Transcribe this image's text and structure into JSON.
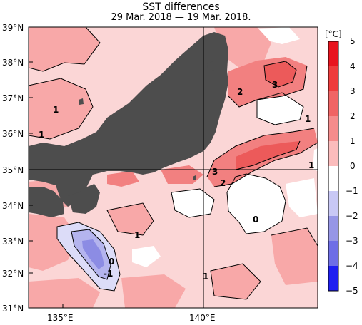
{
  "title": "SST differences",
  "subtitle": "29 Mar. 2018 — 19 Mar. 2018.",
  "lat_labels": [
    "39°N",
    "38°N",
    "37°N",
    "36°N",
    "35°N",
    "34°N",
    "33°N",
    "32°N",
    "31°N"
  ],
  "lon_labels": [
    "135°E",
    "140°E"
  ],
  "colorbar": {
    "unit": "[°C]",
    "ticks": [
      "5",
      "4",
      "3",
      "2",
      "1",
      "0",
      "−1",
      "−2",
      "−3",
      "−4",
      "−5"
    ],
    "colors": {
      "5": "#e8141e",
      "4": "#ee3c3c",
      "3": "#f06464",
      "2": "#f58c8c",
      "1": "#fbbcbc",
      "0": "#ffffff",
      "-1": "#c8c8f5",
      "-2": "#9696e6",
      "-3": "#6e6ee6",
      "-4": "#4646f0",
      "-5": "#1e1ef0"
    }
  },
  "contour_labels": [
    "1",
    "1",
    "2",
    "3",
    "1",
    "1",
    "3",
    "2",
    "0",
    "1",
    "0",
    "-1",
    "1"
  ],
  "colors": {
    "land": "#4d4d4d",
    "base_warm": "#fbd6d6"
  }
}
